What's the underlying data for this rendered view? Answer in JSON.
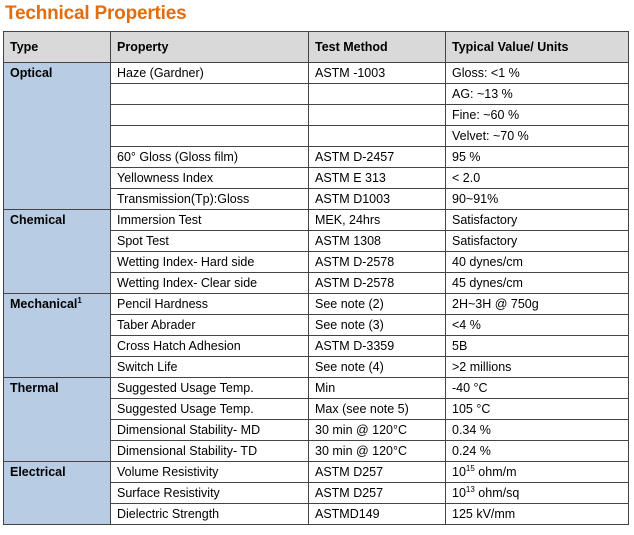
{
  "title": "Technical Properties",
  "headers": [
    "Type",
    "Property",
    "Test Method",
    "Typical Value/ Units"
  ],
  "groups": [
    {
      "type": "Optical",
      "type_sup": "",
      "rows": [
        [
          "Haze (Gardner)",
          "ASTM -1003",
          "Gloss: <1 %"
        ],
        [
          "",
          "",
          "AG: ~13 %"
        ],
        [
          "",
          "",
          "Fine: ~60 %"
        ],
        [
          "",
          "",
          "Velvet: ~70 %"
        ],
        [
          "60° Gloss (Gloss film)",
          "ASTM D-2457",
          "95 %"
        ],
        [
          "Yellowness Index",
          "ASTM E 313",
          "< 2.0"
        ],
        [
          "Transmission(Tp):Gloss",
          "ASTM D1003",
          "90~91%"
        ]
      ]
    },
    {
      "type": "Chemical",
      "type_sup": "",
      "rows": [
        [
          "Immersion Test",
          "MEK, 24hrs",
          "Satisfactory"
        ],
        [
          "Spot Test",
          "ASTM 1308",
          "Satisfactory"
        ],
        [
          "Wetting Index- Hard side",
          "ASTM D-2578",
          "40 dynes/cm"
        ],
        [
          "Wetting Index- Clear side",
          "ASTM D-2578",
          "45 dynes/cm"
        ]
      ]
    },
    {
      "type": "Mechanical",
      "type_sup": "1",
      "rows": [
        [
          "Pencil Hardness",
          "See note (2)",
          "2H~3H @ 750g"
        ],
        [
          "Taber Abrader",
          "See note (3)",
          "<4 %"
        ],
        [
          "Cross Hatch Adhesion",
          "ASTM D-3359",
          "5B"
        ],
        [
          "Switch Life",
          "See note (4)",
          ">2 millions"
        ]
      ]
    },
    {
      "type": "Thermal",
      "type_sup": "",
      "rows": [
        [
          "Suggested Usage Temp.",
          "Min",
          "-40 °C"
        ],
        [
          "Suggested Usage Temp.",
          "Max (see note 5)",
          "105 °C"
        ],
        [
          "Dimensional Stability- MD",
          "30 min @ 120°C",
          "0.34 %"
        ],
        [
          "Dimensional Stability- TD",
          "30 min @ 120°C",
          "0.24 %"
        ]
      ]
    },
    {
      "type": "Electrical",
      "type_sup": "",
      "rows": [
        [
          "Volume Resistivity",
          "ASTM D257",
          {
            "base": "10",
            "sup": "15",
            "rest": " ohm/m"
          }
        ],
        [
          "Surface Resistivity",
          "ASTM D257",
          {
            "base": "10",
            "sup": "13",
            "rest": " ohm/sq"
          }
        ],
        [
          "Dielectric Strength",
          "ASTMD149",
          "125 kV/mm"
        ]
      ]
    }
  ]
}
